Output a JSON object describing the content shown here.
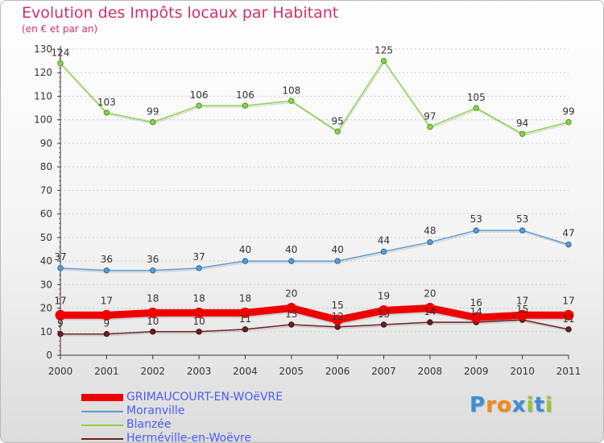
{
  "header": {
    "title": "Evolution des Impôts locaux par Habitant",
    "subtitle": "(en € et par an)"
  },
  "logo": {
    "text": "Proxiti",
    "letters": [
      "P",
      "r",
      "o",
      "x",
      "i",
      "t",
      "i"
    ],
    "colors": [
      "#3b8fd8",
      "#f08a1c",
      "#f08a1c",
      "#3b8fd8",
      "#9ac43a",
      "#3b8fd8",
      "#9ac43a"
    ]
  },
  "chart_data": {
    "type": "line",
    "title": "Evolution des Impôts locaux par Habitant",
    "subtitle": "(en € et par an)",
    "xlabel": "",
    "ylabel": "",
    "x": [
      "2000",
      "2001",
      "2002",
      "2003",
      "2004",
      "2005",
      "2006",
      "2007",
      "2008",
      "2009",
      "2010",
      "2011"
    ],
    "ylim": [
      0,
      130
    ],
    "yticks": [
      0,
      10,
      20,
      30,
      40,
      50,
      60,
      70,
      80,
      90,
      100,
      110,
      120,
      130
    ],
    "grid": "horizontal dashed",
    "legend_position": "bottom-left",
    "series": [
      {
        "name": "GRIMAUCOURT-EN-WOëVRE",
        "color": "#ee0000",
        "values": [
          17,
          17,
          18,
          18,
          18,
          20,
          15,
          19,
          20,
          16,
          17,
          17
        ]
      },
      {
        "name": "Moranville",
        "color": "#5b9bd0",
        "values": [
          37,
          36,
          36,
          37,
          40,
          40,
          40,
          44,
          48,
          53,
          53,
          47
        ]
      },
      {
        "name": "Blanzée",
        "color": "#8ad44a",
        "values": [
          124,
          103,
          99,
          106,
          106,
          108,
          95,
          125,
          97,
          105,
          94,
          99
        ]
      },
      {
        "name": "Herméville-en-Woëvre",
        "color": "#6b2020",
        "values": [
          9,
          9,
          10,
          10,
          11,
          13,
          12,
          13,
          14,
          14,
          15,
          11
        ]
      }
    ]
  }
}
